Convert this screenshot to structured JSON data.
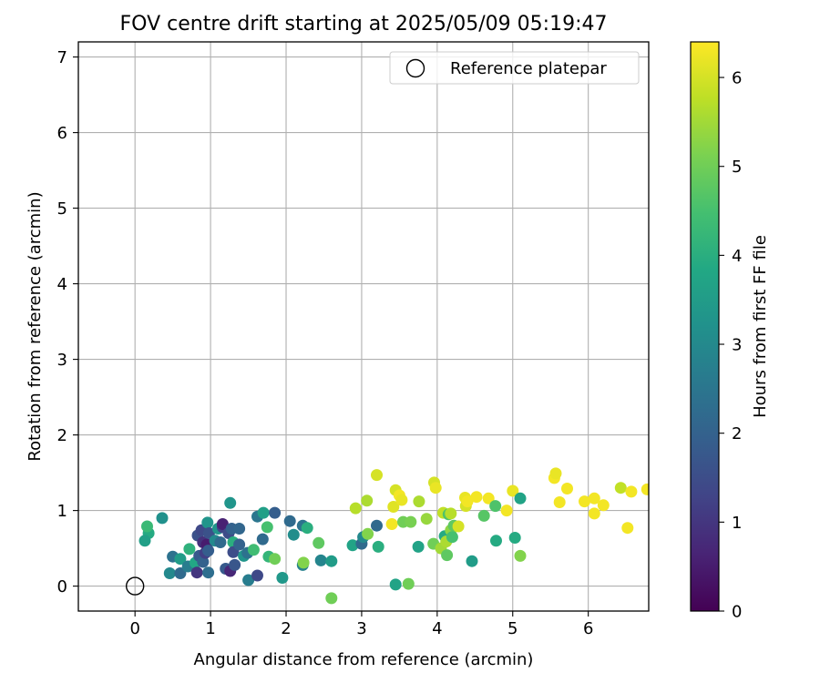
{
  "chart_data": {
    "type": "scatter",
    "title": "FOV centre drift starting at 2025/05/09 05:19:47",
    "xlabel": "Angular distance from reference (arcmin)",
    "ylabel": "Rotation from reference (arcmin)",
    "xlim": [
      -0.75,
      6.8
    ],
    "ylim": [
      -0.33,
      7.2
    ],
    "xticks": [
      0,
      1,
      2,
      3,
      4,
      5,
      6
    ],
    "yticks": [
      0,
      1,
      2,
      3,
      4,
      5,
      6,
      7
    ],
    "grid": true,
    "legend": {
      "placement": "upper right",
      "entries": [
        "Reference platepar"
      ]
    },
    "reference_point": {
      "x": 0,
      "y": 0,
      "label": "Reference platepar"
    },
    "colorbar": {
      "label": "Hours from first FF file",
      "colormap": "viridis",
      "range": [
        0,
        6.4
      ],
      "ticks": [
        0,
        1,
        2,
        3,
        4,
        5,
        6
      ]
    },
    "points": [
      {
        "x": 0.18,
        "y": 0.7,
        "h": 3.9
      },
      {
        "x": 0.16,
        "y": 0.79,
        "h": 4.3
      },
      {
        "x": 0.13,
        "y": 0.6,
        "h": 3.6
      },
      {
        "x": 0.36,
        "y": 0.9,
        "h": 3.2
      },
      {
        "x": 0.46,
        "y": 0.17,
        "h": 3.0
      },
      {
        "x": 0.5,
        "y": 0.39,
        "h": 2.4
      },
      {
        "x": 0.6,
        "y": 0.17,
        "h": 2.2
      },
      {
        "x": 0.6,
        "y": 0.36,
        "h": 3.5
      },
      {
        "x": 0.7,
        "y": 0.26,
        "h": 2.7
      },
      {
        "x": 0.72,
        "y": 0.49,
        "h": 4.1
      },
      {
        "x": 0.8,
        "y": 0.31,
        "h": 3.8
      },
      {
        "x": 0.82,
        "y": 0.18,
        "h": 1.0
      },
      {
        "x": 0.83,
        "y": 0.67,
        "h": 1.6
      },
      {
        "x": 0.85,
        "y": 0.4,
        "h": 1.8
      },
      {
        "x": 0.88,
        "y": 0.74,
        "h": 1.4
      },
      {
        "x": 0.9,
        "y": 0.32,
        "h": 2.0
      },
      {
        "x": 0.9,
        "y": 0.58,
        "h": 0.9
      },
      {
        "x": 0.93,
        "y": 0.44,
        "h": 1.2
      },
      {
        "x": 0.95,
        "y": 0.55,
        "h": 0.5
      },
      {
        "x": 0.96,
        "y": 0.84,
        "h": 3.3
      },
      {
        "x": 0.97,
        "y": 0.18,
        "h": 2.3
      },
      {
        "x": 0.97,
        "y": 0.47,
        "h": 1.9
      },
      {
        "x": 0.98,
        "y": 0.7,
        "h": 1.6
      },
      {
        "x": 1.06,
        "y": 0.6,
        "h": 3.0
      },
      {
        "x": 1.1,
        "y": 0.76,
        "h": 3.3
      },
      {
        "x": 1.13,
        "y": 0.58,
        "h": 2.2
      },
      {
        "x": 1.16,
        "y": 0.78,
        "h": 1.3
      },
      {
        "x": 1.16,
        "y": 0.82,
        "h": 0.6
      },
      {
        "x": 1.2,
        "y": 0.23,
        "h": 1.8
      },
      {
        "x": 1.24,
        "y": 0.7,
        "h": 1.5
      },
      {
        "x": 1.26,
        "y": 1.1,
        "h": 3.3
      },
      {
        "x": 1.26,
        "y": 0.2,
        "h": 0.7
      },
      {
        "x": 1.28,
        "y": 0.76,
        "h": 2.0
      },
      {
        "x": 1.3,
        "y": 0.58,
        "h": 4.0
      },
      {
        "x": 1.3,
        "y": 0.45,
        "h": 1.5
      },
      {
        "x": 1.32,
        "y": 0.28,
        "h": 1.7
      },
      {
        "x": 1.38,
        "y": 0.76,
        "h": 2.1
      },
      {
        "x": 1.38,
        "y": 0.55,
        "h": 2.0
      },
      {
        "x": 1.44,
        "y": 0.4,
        "h": 3.3
      },
      {
        "x": 1.49,
        "y": 0.44,
        "h": 2.4
      },
      {
        "x": 1.5,
        "y": 0.08,
        "h": 2.7
      },
      {
        "x": 1.57,
        "y": 0.48,
        "h": 4.4
      },
      {
        "x": 1.62,
        "y": 0.92,
        "h": 2.5
      },
      {
        "x": 1.62,
        "y": 0.14,
        "h": 1.4
      },
      {
        "x": 1.69,
        "y": 0.62,
        "h": 2.2
      },
      {
        "x": 1.7,
        "y": 0.97,
        "h": 3.6
      },
      {
        "x": 1.75,
        "y": 0.78,
        "h": 4.5
      },
      {
        "x": 1.77,
        "y": 0.39,
        "h": 4.2
      },
      {
        "x": 1.85,
        "y": 0.97,
        "h": 1.9
      },
      {
        "x": 1.85,
        "y": 0.36,
        "h": 5.0
      },
      {
        "x": 1.95,
        "y": 0.11,
        "h": 3.4
      },
      {
        "x": 2.05,
        "y": 0.86,
        "h": 2.2
      },
      {
        "x": 2.1,
        "y": 0.68,
        "h": 3.1
      },
      {
        "x": 2.22,
        "y": 0.8,
        "h": 2.4
      },
      {
        "x": 2.22,
        "y": 0.28,
        "h": 2.8
      },
      {
        "x": 2.23,
        "y": 0.31,
        "h": 5.2
      },
      {
        "x": 2.28,
        "y": 0.77,
        "h": 4.0
      },
      {
        "x": 2.43,
        "y": 0.57,
        "h": 4.8
      },
      {
        "x": 2.46,
        "y": 0.34,
        "h": 2.9
      },
      {
        "x": 2.6,
        "y": 0.33,
        "h": 3.5
      },
      {
        "x": 2.6,
        "y": -0.16,
        "h": 5.0
      },
      {
        "x": 2.88,
        "y": 0.54,
        "h": 3.7
      },
      {
        "x": 2.92,
        "y": 1.03,
        "h": 5.7
      },
      {
        "x": 3.0,
        "y": 0.56,
        "h": 2.2
      },
      {
        "x": 3.02,
        "y": 0.65,
        "h": 3.0
      },
      {
        "x": 3.07,
        "y": 1.13,
        "h": 5.6
      },
      {
        "x": 3.08,
        "y": 0.69,
        "h": 5.2
      },
      {
        "x": 3.2,
        "y": 0.8,
        "h": 2.2
      },
      {
        "x": 3.2,
        "y": 1.47,
        "h": 6.0
      },
      {
        "x": 3.22,
        "y": 0.52,
        "h": 4.0
      },
      {
        "x": 3.4,
        "y": 0.82,
        "h": 6.3
      },
      {
        "x": 3.42,
        "y": 1.05,
        "h": 6.1
      },
      {
        "x": 3.45,
        "y": 1.27,
        "h": 6.0
      },
      {
        "x": 3.45,
        "y": 0.02,
        "h": 3.7
      },
      {
        "x": 3.5,
        "y": 1.2,
        "h": 6.3
      },
      {
        "x": 3.53,
        "y": 1.14,
        "h": 6.2
      },
      {
        "x": 3.55,
        "y": 0.85,
        "h": 5.0
      },
      {
        "x": 3.62,
        "y": 0.03,
        "h": 5.0
      },
      {
        "x": 3.65,
        "y": 0.85,
        "h": 5.1
      },
      {
        "x": 3.75,
        "y": 0.52,
        "h": 3.7
      },
      {
        "x": 3.76,
        "y": 1.12,
        "h": 5.6
      },
      {
        "x": 3.86,
        "y": 0.89,
        "h": 5.4
      },
      {
        "x": 3.95,
        "y": 0.56,
        "h": 5.0
      },
      {
        "x": 3.96,
        "y": 1.37,
        "h": 6.0
      },
      {
        "x": 3.98,
        "y": 1.3,
        "h": 6.2
      },
      {
        "x": 4.05,
        "y": 0.5,
        "h": 5.5
      },
      {
        "x": 4.08,
        "y": 0.97,
        "h": 5.8
      },
      {
        "x": 4.1,
        "y": 0.66,
        "h": 3.9
      },
      {
        "x": 4.12,
        "y": 0.59,
        "h": 5.6
      },
      {
        "x": 4.13,
        "y": 0.41,
        "h": 4.8
      },
      {
        "x": 4.15,
        "y": 0.95,
        "h": 4.6
      },
      {
        "x": 4.18,
        "y": 0.96,
        "h": 5.7
      },
      {
        "x": 4.18,
        "y": 0.74,
        "h": 5.3
      },
      {
        "x": 4.2,
        "y": 0.65,
        "h": 4.5
      },
      {
        "x": 4.22,
        "y": 0.8,
        "h": 4.8
      },
      {
        "x": 4.28,
        "y": 0.79,
        "h": 6.0
      },
      {
        "x": 4.37,
        "y": 1.17,
        "h": 6.2
      },
      {
        "x": 4.38,
        "y": 1.06,
        "h": 6.0
      },
      {
        "x": 4.4,
        "y": 1.12,
        "h": 6.3
      },
      {
        "x": 4.46,
        "y": 0.33,
        "h": 3.5
      },
      {
        "x": 4.52,
        "y": 1.18,
        "h": 6.3
      },
      {
        "x": 4.62,
        "y": 0.93,
        "h": 4.7
      },
      {
        "x": 4.68,
        "y": 1.16,
        "h": 6.3
      },
      {
        "x": 4.77,
        "y": 1.06,
        "h": 4.6
      },
      {
        "x": 4.78,
        "y": 0.6,
        "h": 3.9
      },
      {
        "x": 4.92,
        "y": 1.0,
        "h": 6.3
      },
      {
        "x": 5.0,
        "y": 1.26,
        "h": 6.2
      },
      {
        "x": 5.03,
        "y": 0.64,
        "h": 3.9
      },
      {
        "x": 5.1,
        "y": 1.16,
        "h": 3.7
      },
      {
        "x": 5.1,
        "y": 0.4,
        "h": 5.2
      },
      {
        "x": 5.55,
        "y": 1.43,
        "h": 6.3
      },
      {
        "x": 5.57,
        "y": 1.49,
        "h": 6.2
      },
      {
        "x": 5.62,
        "y": 1.11,
        "h": 6.3
      },
      {
        "x": 5.72,
        "y": 1.29,
        "h": 6.3
      },
      {
        "x": 5.95,
        "y": 1.12,
        "h": 6.3
      },
      {
        "x": 6.08,
        "y": 1.16,
        "h": 6.3
      },
      {
        "x": 6.08,
        "y": 0.96,
        "h": 6.3
      },
      {
        "x": 6.2,
        "y": 1.07,
        "h": 6.3
      },
      {
        "x": 6.43,
        "y": 1.3,
        "h": 5.8
      },
      {
        "x": 6.52,
        "y": 0.77,
        "h": 6.3
      },
      {
        "x": 6.57,
        "y": 1.25,
        "h": 6.3
      },
      {
        "x": 6.78,
        "y": 1.28,
        "h": 6.3
      }
    ]
  }
}
